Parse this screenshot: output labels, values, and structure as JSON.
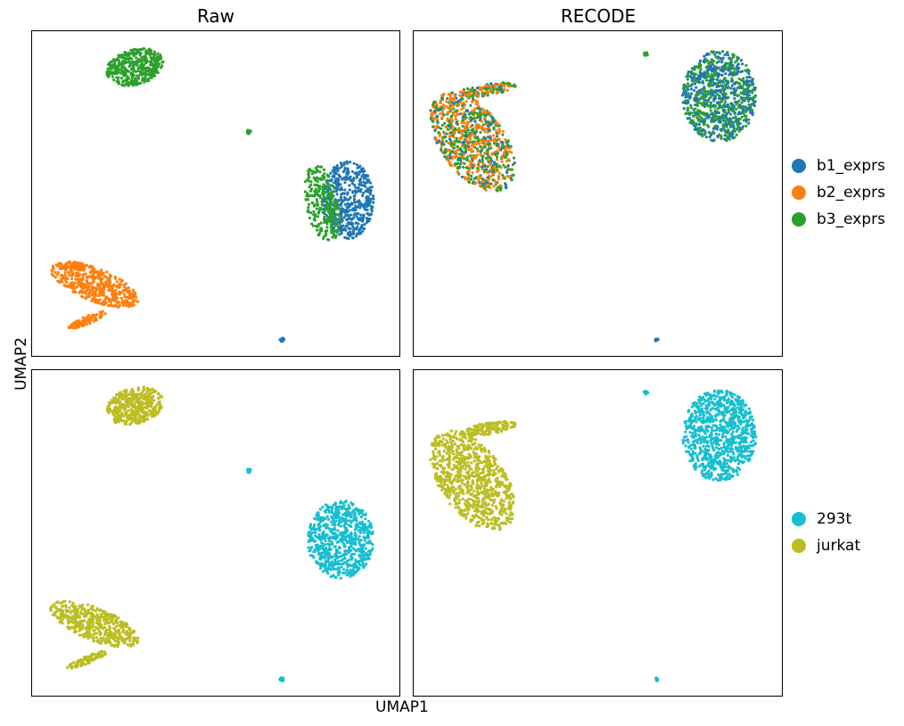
{
  "chart_data": {
    "type": "scatter",
    "xlabel": "UMAP1",
    "ylabel": "UMAP2",
    "columns": [
      "Raw",
      "RECODE"
    ],
    "legends": {
      "batch": [
        {
          "label": "b1_exprs",
          "color": "#1f77b4"
        },
        {
          "label": "b2_exprs",
          "color": "#ff7f0e"
        },
        {
          "label": "b3_exprs",
          "color": "#2ca02c"
        }
      ],
      "cell_type": [
        {
          "label": "293t",
          "color": "#17becf"
        },
        {
          "label": "jurkat",
          "color": "#bcbd22"
        }
      ]
    },
    "panels": [
      {
        "row": "batch",
        "column": "Raw",
        "clusters": [
          {
            "cx": 0.28,
            "cy": 0.89,
            "rx": 0.08,
            "ry": 0.055,
            "rot": 20,
            "color_by": "b3_exprs",
            "n": 420
          },
          {
            "cx": 0.17,
            "cy": 0.22,
            "rx": 0.13,
            "ry": 0.05,
            "rot": -25,
            "color_by": "b2_exprs",
            "n": 500
          },
          {
            "cx": 0.15,
            "cy": 0.11,
            "rx": 0.06,
            "ry": 0.012,
            "rot": 25,
            "color_by": "b2_exprs",
            "n": 90
          },
          {
            "cx": 0.86,
            "cy": 0.48,
            "rx": 0.07,
            "ry": 0.12,
            "rot": 0,
            "color_by": "b1_exprs",
            "n": 500
          },
          {
            "cx": 0.79,
            "cy": 0.47,
            "rx": 0.045,
            "ry": 0.12,
            "rot": 10,
            "color_by": "b3_exprs",
            "n": 260
          },
          {
            "cx": 0.59,
            "cy": 0.69,
            "rx": 0.006,
            "ry": 0.006,
            "rot": 0,
            "color_by": "b3_exprs",
            "n": 12
          },
          {
            "cx": 0.68,
            "cy": 0.05,
            "rx": 0.006,
            "ry": 0.006,
            "rot": 0,
            "color_by": "b1_exprs",
            "n": 12
          }
        ]
      },
      {
        "row": "batch",
        "column": "RECODE",
        "clusters": [
          {
            "cx": 0.16,
            "cy": 0.66,
            "rx": 0.09,
            "ry": 0.17,
            "rot": 30,
            "color_by": "mixed",
            "n": 900
          },
          {
            "cx": 0.2,
            "cy": 0.82,
            "rx": 0.08,
            "ry": 0.018,
            "rot": 10,
            "color_by": "mixed",
            "n": 140
          },
          {
            "cx": 0.83,
            "cy": 0.8,
            "rx": 0.1,
            "ry": 0.14,
            "rot": 0,
            "color_by": "mixed_b1b3",
            "n": 900
          },
          {
            "cx": 0.63,
            "cy": 0.93,
            "rx": 0.006,
            "ry": 0.006,
            "rot": 0,
            "color_by": "b3_exprs",
            "n": 12
          },
          {
            "cx": 0.66,
            "cy": 0.05,
            "rx": 0.005,
            "ry": 0.005,
            "rot": 0,
            "color_by": "b1_exprs",
            "n": 10
          }
        ]
      },
      {
        "row": "cell_type",
        "column": "Raw",
        "clusters": [
          {
            "cx": 0.28,
            "cy": 0.89,
            "rx": 0.08,
            "ry": 0.055,
            "rot": 20,
            "color_by": "jurkat",
            "n": 420
          },
          {
            "cx": 0.17,
            "cy": 0.22,
            "rx": 0.13,
            "ry": 0.05,
            "rot": -25,
            "color_by": "jurkat",
            "n": 500
          },
          {
            "cx": 0.15,
            "cy": 0.11,
            "rx": 0.06,
            "ry": 0.012,
            "rot": 25,
            "color_by": "jurkat",
            "n": 90
          },
          {
            "cx": 0.84,
            "cy": 0.48,
            "rx": 0.09,
            "ry": 0.12,
            "rot": 0,
            "color_by": "293t",
            "n": 700
          },
          {
            "cx": 0.59,
            "cy": 0.69,
            "rx": 0.006,
            "ry": 0.006,
            "rot": 0,
            "color_by": "293t",
            "n": 12
          },
          {
            "cx": 0.68,
            "cy": 0.05,
            "rx": 0.006,
            "ry": 0.006,
            "rot": 0,
            "color_by": "293t",
            "n": 12
          }
        ]
      },
      {
        "row": "cell_type",
        "column": "RECODE",
        "clusters": [
          {
            "cx": 0.16,
            "cy": 0.66,
            "rx": 0.09,
            "ry": 0.17,
            "rot": 30,
            "color_by": "jurkat",
            "n": 900
          },
          {
            "cx": 0.2,
            "cy": 0.82,
            "rx": 0.08,
            "ry": 0.018,
            "rot": 10,
            "color_by": "jurkat",
            "n": 140
          },
          {
            "cx": 0.83,
            "cy": 0.8,
            "rx": 0.1,
            "ry": 0.14,
            "rot": 0,
            "color_by": "293t",
            "n": 900
          },
          {
            "cx": 0.63,
            "cy": 0.93,
            "rx": 0.006,
            "ry": 0.006,
            "rot": 0,
            "color_by": "293t",
            "n": 12
          },
          {
            "cx": 0.66,
            "cy": 0.05,
            "rx": 0.005,
            "ry": 0.005,
            "rot": 0,
            "color_by": "293t",
            "n": 10
          }
        ]
      }
    ]
  }
}
